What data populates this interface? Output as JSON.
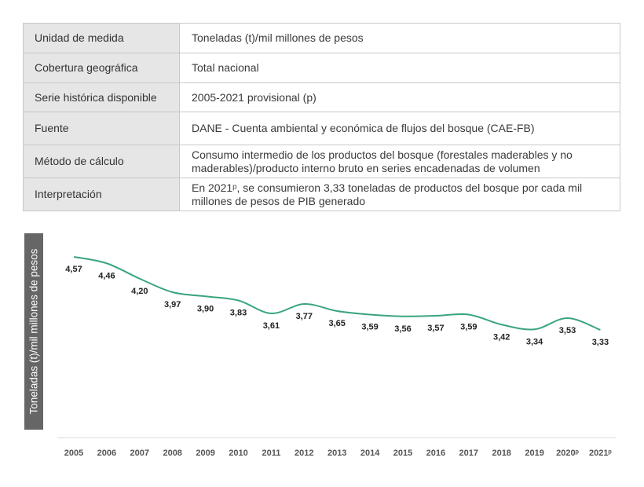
{
  "table": {
    "rows": [
      {
        "label": "Unidad de medida",
        "value": "Toneladas (t)/mil millones de pesos"
      },
      {
        "label": "Cobertura geográfica",
        "value": "Total nacional"
      },
      {
        "label": "Serie histórica disponible",
        "value": "2005-2021 provisional (p)"
      },
      {
        "label": "Fuente",
        "value": "DANE - Cuenta ambiental y económica de flujos del bosque (CAE-FB)"
      },
      {
        "label": "Método de cálculo",
        "value": "Consumo intermedio de los productos del bosque (forestales maderables y no maderables)/producto interno bruto en series encadenadas de volumen"
      },
      {
        "label": "Interpretación",
        "value": "En 2021ᵖ, se consumieron 3,33 toneladas de productos del bosque por cada mil millones de pesos de PIB generado"
      }
    ]
  },
  "chart_data": {
    "type": "line",
    "ylabel": "Toneladas (t)/mil millones de pesos",
    "categories": [
      "2005",
      "2006",
      "2007",
      "2008",
      "2009",
      "2010",
      "2011",
      "2012",
      "2013",
      "2014",
      "2015",
      "2016",
      "2017",
      "2018",
      "2019",
      "2020ᵖ",
      "2021ᵖ"
    ],
    "series": [
      {
        "values": [
          4.57,
          4.46,
          4.2,
          3.97,
          3.9,
          3.83,
          3.61,
          3.77,
          3.65,
          3.59,
          3.56,
          3.57,
          3.59,
          3.42,
          3.34,
          3.53,
          3.33
        ],
        "labels": [
          "4,57",
          "4,46",
          "4,20",
          "3,97",
          "3,90",
          "3,83",
          "3,61",
          "3,77",
          "3,65",
          "3,59",
          "3,56",
          "3,57",
          "3,59",
          "3,42",
          "3,34",
          "3,53",
          "3,33"
        ]
      }
    ],
    "colors": {
      "line": "#3aa57c",
      "axis": "#d9d9d9"
    },
    "grid": false,
    "legend": "none"
  }
}
